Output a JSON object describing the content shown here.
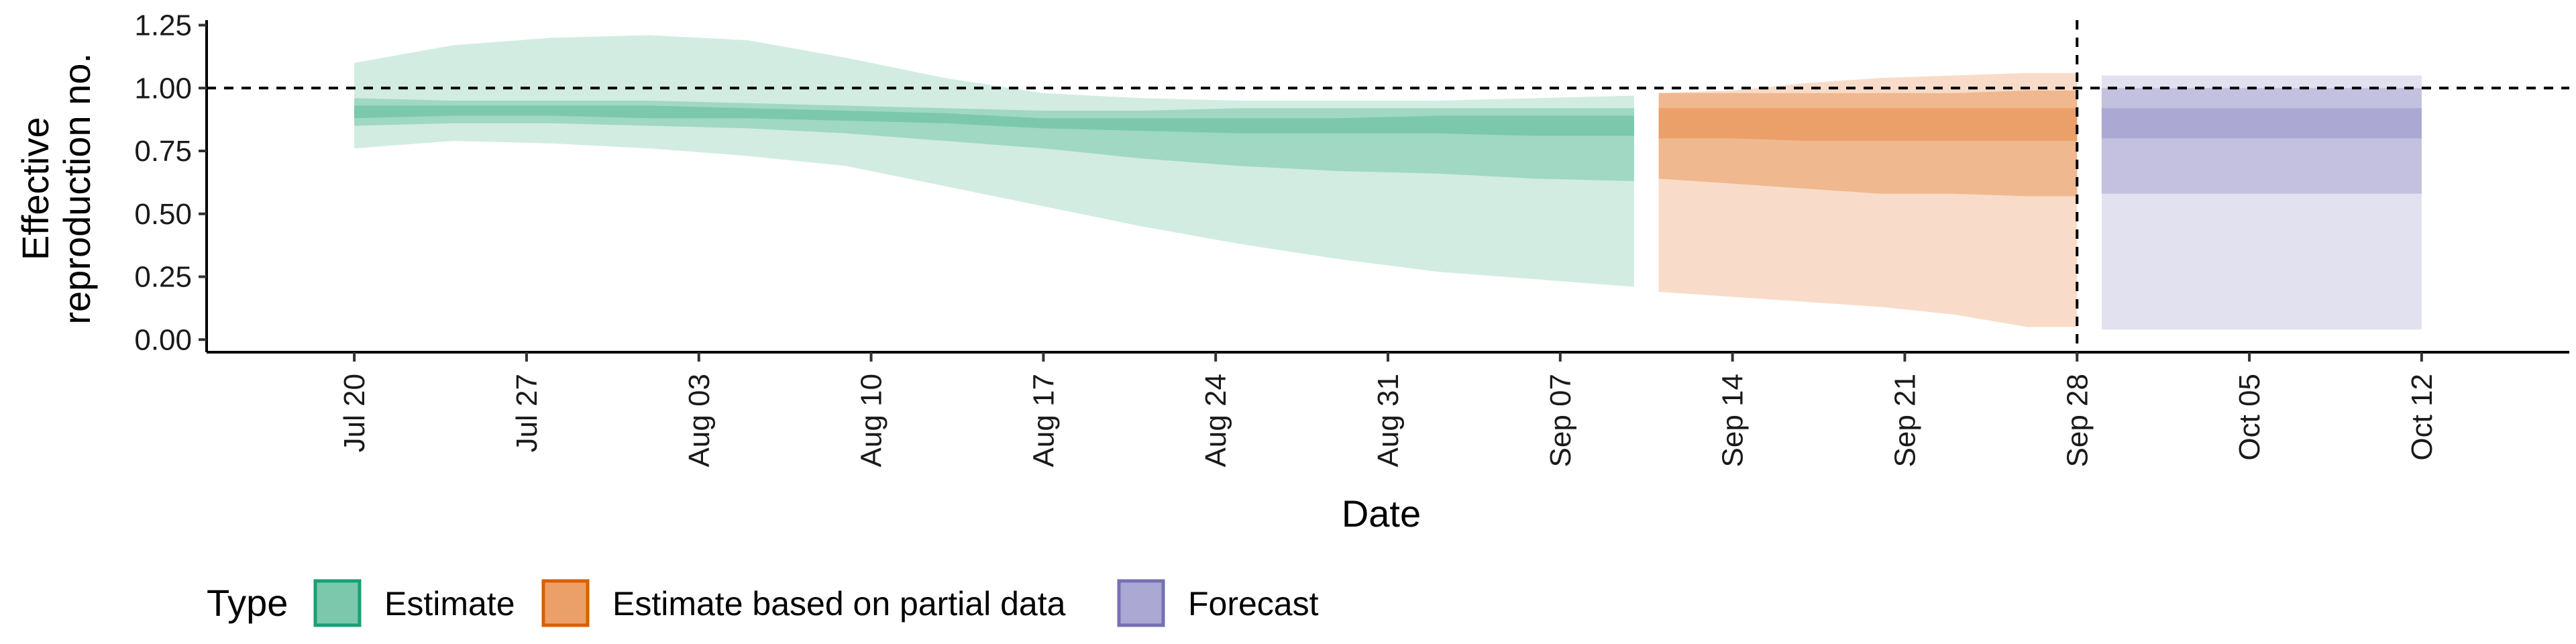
{
  "chart_data": {
    "type": "area",
    "xlabel": "Date",
    "ylabel_lines": [
      "Effective",
      "reproduction no."
    ],
    "ylim": [
      -0.05,
      1.27
    ],
    "y_ticks": [
      0,
      0.25,
      0.5,
      0.75,
      1,
      1.25
    ],
    "y_tick_labels": [
      "0.00",
      "0.25",
      "0.50",
      "0.75",
      "1.00",
      "1.25"
    ],
    "x_range": [
      "2020-07-14",
      "2020-10-18"
    ],
    "x_ticks": [
      "2020-07-20",
      "2020-07-27",
      "2020-08-03",
      "2020-08-10",
      "2020-08-17",
      "2020-08-24",
      "2020-08-31",
      "2020-09-07",
      "2020-09-14",
      "2020-09-21",
      "2020-09-28",
      "2020-10-05",
      "2020-10-12"
    ],
    "x_tick_labels": [
      "Jul 20",
      "Jul 27",
      "Aug 03",
      "Aug 10",
      "Aug 17",
      "Aug 24",
      "Aug 31",
      "Sep 07",
      "Sep 14",
      "Sep 21",
      "Sep 28",
      "Oct 05",
      "Oct 12"
    ],
    "reference_line_y": 1.0,
    "vertical_line_x": "2020-09-28",
    "legend": {
      "title": "Type",
      "position": "bottom-left",
      "entries": [
        {
          "label": "Estimate",
          "fill": "#7bc8ad",
          "stroke": "#1b9e77"
        },
        {
          "label": "Estimate based on partial data",
          "fill": "#eba06a",
          "stroke": "#d95f02"
        },
        {
          "label": "Forecast",
          "fill": "#aba8d3",
          "stroke": "#7570b3"
        }
      ]
    },
    "series": [
      {
        "name": "Estimate",
        "colors": {
          "outer": "#d2ece2",
          "mid": "#a0d8c3",
          "inner": "#7bc8ad"
        },
        "x": [
          "2020-07-20",
          "2020-07-24",
          "2020-07-28",
          "2020-08-01",
          "2020-08-05",
          "2020-08-09",
          "2020-08-13",
          "2020-08-17",
          "2020-08-21",
          "2020-08-25",
          "2020-08-29",
          "2020-09-02",
          "2020-09-06",
          "2020-09-10"
        ],
        "lower90": [
          0.76,
          0.79,
          0.78,
          0.76,
          0.73,
          0.69,
          0.61,
          0.53,
          0.45,
          0.38,
          0.32,
          0.27,
          0.24,
          0.21
        ],
        "upper90": [
          1.1,
          1.17,
          1.2,
          1.21,
          1.19,
          1.12,
          1.04,
          0.98,
          0.96,
          0.95,
          0.95,
          0.95,
          0.96,
          0.97
        ],
        "lower50": [
          0.85,
          0.86,
          0.86,
          0.85,
          0.84,
          0.82,
          0.79,
          0.76,
          0.72,
          0.69,
          0.67,
          0.66,
          0.64,
          0.63
        ],
        "upper50": [
          0.96,
          0.95,
          0.95,
          0.95,
          0.94,
          0.93,
          0.92,
          0.91,
          0.91,
          0.92,
          0.92,
          0.92,
          0.92,
          0.92
        ],
        "lower20": [
          0.88,
          0.89,
          0.89,
          0.88,
          0.88,
          0.87,
          0.86,
          0.84,
          0.83,
          0.82,
          0.82,
          0.82,
          0.81,
          0.81
        ],
        "upper20": [
          0.93,
          0.93,
          0.93,
          0.93,
          0.92,
          0.91,
          0.9,
          0.88,
          0.88,
          0.88,
          0.88,
          0.89,
          0.89,
          0.89
        ]
      },
      {
        "name": "Estimate based on partial data",
        "colors": {
          "outer": "#f8dcc9",
          "mid": "#f0b88f",
          "inner": "#eba06a"
        },
        "x": [
          "2020-09-11",
          "2020-09-14",
          "2020-09-17",
          "2020-09-20",
          "2020-09-23",
          "2020-09-26",
          "2020-09-28"
        ],
        "lower90": [
          0.19,
          0.17,
          0.15,
          0.13,
          0.1,
          0.05,
          0.05
        ],
        "upper90": [
          0.98,
          0.99,
          1.02,
          1.04,
          1.05,
          1.06,
          1.06
        ],
        "lower50": [
          0.64,
          0.62,
          0.6,
          0.58,
          0.58,
          0.57,
          0.57
        ],
        "upper50": [
          0.98,
          0.98,
          0.98,
          0.98,
          0.98,
          0.99,
          0.99
        ],
        "lower20": [
          0.8,
          0.8,
          0.79,
          0.79,
          0.79,
          0.79,
          0.79
        ],
        "upper20": [
          0.92,
          0.92,
          0.92,
          0.92,
          0.92,
          0.92,
          0.92
        ]
      },
      {
        "name": "Forecast",
        "colors": {
          "outer": "#e2e1f0",
          "mid": "#c4c1e0",
          "inner": "#aba8d3"
        },
        "x": [
          "2020-09-29",
          "2020-10-12"
        ],
        "lower90": [
          0.04,
          0.04
        ],
        "upper90": [
          1.05,
          1.05
        ],
        "lower50": [
          0.58,
          0.58
        ],
        "upper50": [
          1.0,
          1.0
        ],
        "lower20": [
          0.8,
          0.8
        ],
        "upper20": [
          0.92,
          0.92
        ]
      }
    ]
  }
}
